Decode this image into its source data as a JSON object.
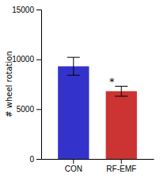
{
  "chart_data": {
    "type": "bar",
    "categories": [
      "CON",
      "RF-EMF"
    ],
    "values": [
      9300,
      6800
    ],
    "errors": [
      900,
      500
    ],
    "colors": [
      "#3333cc",
      "#cc3333"
    ],
    "ylabel": "# wheel rotation",
    "ylim": [
      0,
      15000
    ],
    "yticks": [
      0,
      5000,
      10000,
      15000
    ],
    "annotations": [
      {
        "text": "*",
        "category": "RF-EMF"
      }
    ]
  }
}
